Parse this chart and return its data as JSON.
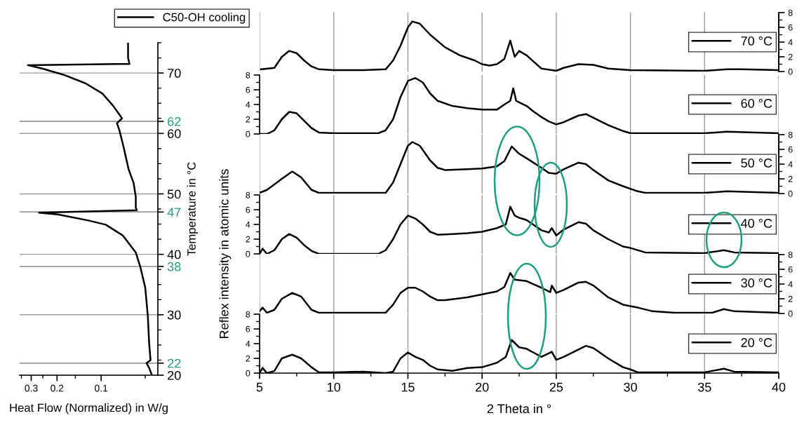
{
  "chart_data": [
    {
      "type": "line",
      "xlabel": "Heat Flow (Normalized) in W/g",
      "ylabel": "Temperature in °C",
      "log": "x",
      "xlim": [
        0.36,
        0.041
      ],
      "xticks": [
        {
          "value": 0.35,
          "label": null
        },
        0.3,
        {
          "value": 0.25,
          "label": null
        },
        0.2,
        {
          "value": 0.15,
          "label": null
        },
        0.1,
        {
          "value": 0.05,
          "label": null
        }
      ],
      "ylim": [
        20,
        75
      ],
      "yticks": [
        20,
        {
          "value": 22.5,
          "label": null
        },
        {
          "value": 25,
          "label": null
        },
        {
          "value": 27.5,
          "label": null
        },
        30,
        {
          "value": 32.5,
          "label": null
        },
        {
          "value": 35,
          "label": null
        },
        {
          "value": 37.5,
          "label": null
        },
        40,
        {
          "value": 42.5,
          "label": null
        },
        {
          "value": 45,
          "label": null
        },
        {
          "value": 47.5,
          "label": null
        },
        50,
        {
          "value": 52.5,
          "label": null
        },
        {
          "value": 55,
          "label": null
        },
        {
          "value": 57.5,
          "label": null
        },
        60,
        {
          "value": 62.5,
          "label": null
        },
        {
          "value": 65,
          "label": null
        },
        {
          "value": 67.5,
          "label": null
        },
        70,
        {
          "value": 72.5,
          "label": null
        },
        {
          "value": 75,
          "label": null
        }
      ],
      "grid": "y",
      "legend": "top",
      "ref_lines": [
        {
          "axis": "y",
          "value": 22,
          "label": "22"
        },
        {
          "axis": "y",
          "value": 38,
          "label": "38"
        },
        {
          "axis": "y",
          "value": 47,
          "label": "47"
        },
        {
          "axis": "y",
          "value": 62,
          "label": "62"
        }
      ],
      "series": [
        {
          "name": "C50-OH cooling",
          "color": "#000000",
          "x": [
            0.0655,
            0.0655,
            0.064,
            0.078,
            0.316,
            0.25,
            0.18,
            0.128,
            0.098,
            0.083,
            0.075,
            0.072,
            0.078,
            0.075,
            0.07,
            0.065,
            0.06,
            0.058,
            0.058,
            0.057,
            0.266,
            0.198,
            0.122,
            0.093,
            0.071,
            0.058,
            0.054,
            0.05,
            0.048,
            0.047,
            0.046,
            0.049,
            0.047,
            0.045
          ],
          "values": [
            74.9,
            72.5,
            71.5,
            71.5,
            71.3,
            70.7,
            69.7,
            68.3,
            66.6,
            64.6,
            63.1,
            62.5,
            61.7,
            60.5,
            57.6,
            54.1,
            51.8,
            49.5,
            47.7,
            47.3,
            46.9,
            46.6,
            45.6,
            44.9,
            43.1,
            40.3,
            37.9,
            34.5,
            29.8,
            25.2,
            22.5,
            22.0,
            21.2,
            20.0
          ]
        }
      ]
    },
    {
      "type": "line",
      "xlim": [
        5,
        40
      ],
      "xticks": [
        5,
        10,
        15,
        20,
        25,
        30,
        35,
        40
      ],
      "y2lim": [
        0,
        8
      ],
      "y2ticks": [
        0,
        {
          "value": 1,
          "label": null
        },
        2,
        {
          "value": 3,
          "label": null
        },
        4,
        {
          "value": 5,
          "label": null
        },
        6,
        {
          "value": 7,
          "label": null
        },
        8
      ],
      "grid": "x",
      "legend": "right",
      "tick_labels": "y",
      "x": [
        5.1,
        6,
        6.5,
        7,
        7.5,
        8,
        8.5,
        9,
        10,
        12,
        13.5,
        14,
        14.5,
        15,
        15.3,
        15.8,
        16.5,
        17.5,
        18.5,
        19.5,
        20,
        20.5,
        21,
        21.5,
        21.9,
        22.2,
        22.5,
        23,
        23.5,
        24,
        25,
        25.5,
        26.5,
        27.5,
        28.5,
        30,
        35,
        36.5,
        37.5,
        40
      ],
      "series": [
        {
          "name": "70 °C",
          "color": "#000000",
          "axis": "y2",
          "values": [
            0.3,
            0.5,
            2,
            2.8,
            2.5,
            1.5,
            0.7,
            0.3,
            0.2,
            0.2,
            0.3,
            1.5,
            3.5,
            6,
            6.8,
            6.5,
            5,
            3.3,
            2.2,
            1.5,
            1,
            0.8,
            1,
            1.7,
            4.2,
            2,
            2.8,
            2.2,
            1.3,
            0.4,
            0.1,
            0.5,
            1,
            0.9,
            0.4,
            0.2,
            0.1,
            0.3,
            0.3,
            0.2
          ]
        }
      ]
    },
    {
      "type": "line",
      "xlim": [
        5,
        40
      ],
      "xticks": [
        5,
        10,
        15,
        20,
        25,
        30,
        35,
        40
      ],
      "ylim": [
        0,
        8
      ],
      "yticks": [
        0,
        {
          "value": 1,
          "label": null
        },
        2,
        {
          "value": 3,
          "label": null
        },
        4,
        {
          "value": 5,
          "label": null
        },
        6,
        {
          "value": 7,
          "label": null
        },
        8
      ],
      "grid": "x",
      "legend": "right",
      "tick_labels": "y",
      "x": [
        5,
        5.5,
        6,
        6.5,
        7,
        7.5,
        8,
        8.5,
        9,
        10,
        13,
        13.5,
        14,
        14.5,
        15,
        15.5,
        16,
        16.5,
        17,
        18,
        19,
        20,
        21,
        21.5,
        21.9,
        22.1,
        22.3,
        22.5,
        23,
        23.5,
        24,
        24.5,
        25,
        25.5,
        26.5,
        27,
        27.5,
        28.5,
        29.5,
        30,
        35,
        36.5,
        40
      ],
      "series": [
        {
          "name": "60 °C",
          "color": "#000000",
          "values": [
            0,
            0,
            0.5,
            2,
            3,
            2.8,
            1.8,
            0.8,
            0.2,
            0.1,
            0.1,
            0.5,
            2,
            5,
            7.2,
            7.6,
            7,
            5.5,
            4.5,
            3.8,
            3.5,
            3.3,
            3.3,
            4,
            4.5,
            6.2,
            4.5,
            4.3,
            3.8,
            3,
            2.3,
            1.7,
            1.3,
            1.6,
            2.5,
            2.7,
            2.2,
            1.2,
            0.4,
            0.1,
            0.1,
            0.3,
            0.1
          ]
        }
      ]
    },
    {
      "type": "line",
      "xlim": [
        5,
        40
      ],
      "xticks": [
        5,
        10,
        15,
        20,
        25,
        30,
        35,
        40
      ],
      "y2lim": [
        0,
        8
      ],
      "y2ticks": [
        0,
        {
          "value": 1,
          "label": null
        },
        2,
        {
          "value": 3,
          "label": null
        },
        4,
        {
          "value": 5,
          "label": null
        },
        6,
        {
          "value": 7,
          "label": null
        },
        8
      ],
      "grid": "x",
      "legend": "right",
      "tick_labels": "y",
      "x": [
        5,
        5.5,
        6.5,
        7.2,
        7.8,
        8.5,
        9,
        13.5,
        14,
        14.5,
        15,
        15.3,
        15.8,
        16.5,
        17,
        17.5,
        19,
        20,
        21,
        21.5,
        22,
        22.5,
        23,
        24,
        24.5,
        25,
        25.5,
        26.5,
        27,
        27.5,
        28.5,
        29.5,
        30.5,
        31,
        35,
        36.5,
        40
      ],
      "series": [
        {
          "name": "50 °C",
          "color": "#000000",
          "axis": "y2",
          "values": [
            0.1,
            0.5,
            2,
            3,
            2.2,
            0.5,
            0.1,
            0.1,
            1.5,
            4,
            6.5,
            7,
            6.5,
            4.5,
            3.5,
            3.2,
            3.3,
            3.4,
            3.7,
            4.4,
            6.4,
            5.4,
            4.8,
            3.5,
            2.8,
            2.7,
            3.3,
            4.2,
            4,
            3.2,
            1.8,
            1,
            0.3,
            0.1,
            0.1,
            0.3,
            0.1
          ]
        }
      ]
    },
    {
      "type": "line",
      "ylabel": "Reflex intensity in atomic units",
      "xlim": [
        5,
        40
      ],
      "xticks": [
        5,
        10,
        15,
        20,
        25,
        30,
        35,
        40
      ],
      "ylim": [
        0,
        8
      ],
      "yticks": [
        0,
        {
          "value": 1,
          "label": null
        },
        2,
        {
          "value": 3,
          "label": null
        },
        4,
        {
          "value": 5,
          "label": null
        },
        6,
        {
          "value": 7,
          "label": null
        },
        8
      ],
      "grid": "x",
      "legend": "right",
      "tick_labels": "y",
      "x": [
        5,
        5.2,
        5.5,
        6,
        6.5,
        7,
        7.5,
        8,
        8.5,
        9,
        13,
        13.5,
        14,
        14.5,
        15,
        15.5,
        16,
        16.5,
        17,
        18,
        19,
        20,
        21,
        21.6,
        21.9,
        22.2,
        22.5,
        23,
        24,
        24.5,
        24.7,
        25,
        25.5,
        26.5,
        27,
        27.5,
        28.5,
        29.5,
        30,
        31,
        35,
        36.3,
        37,
        40
      ],
      "series": [
        {
          "name": "40 °C",
          "color": "#000000",
          "values": [
            0,
            0.7,
            0,
            0.5,
            2,
            2.7,
            2.2,
            1.2,
            0.4,
            0,
            0,
            0.5,
            2,
            4,
            5.2,
            4.8,
            4,
            3,
            2.6,
            2.7,
            2.8,
            3,
            3.5,
            4,
            6.4,
            5.2,
            4.9,
            4.6,
            3.2,
            2.9,
            3.5,
            2.5,
            3.3,
            4.3,
            4.1,
            3.2,
            2,
            1,
            0.8,
            0.2,
            0.1,
            0.5,
            0.2,
            0.1
          ]
        }
      ]
    },
    {
      "type": "line",
      "xlim": [
        5,
        40
      ],
      "xticks": [
        5,
        10,
        15,
        20,
        25,
        30,
        35,
        40
      ],
      "y2lim": [
        0,
        8
      ],
      "y2ticks": [
        0,
        {
          "value": 1,
          "label": null
        },
        2,
        {
          "value": 3,
          "label": null
        },
        4,
        {
          "value": 5,
          "label": null
        },
        6,
        {
          "value": 7,
          "label": null
        },
        8
      ],
      "grid": "x",
      "legend": "right",
      "tick_labels": "y",
      "x": [
        5,
        5.2,
        5.5,
        6,
        6.5,
        7.2,
        7.8,
        8.5,
        9,
        13.5,
        14,
        14.5,
        15,
        15.5,
        16,
        16.5,
        17,
        17.5,
        19,
        20,
        21,
        21.5,
        21.9,
        22.2,
        23,
        24,
        24.6,
        24.7,
        25,
        25.5,
        26.5,
        27,
        27.5,
        28.5,
        29.5,
        30.5,
        31.5,
        33,
        35.5,
        36.3,
        37,
        40
      ],
      "series": [
        {
          "name": "30 °C",
          "color": "#000000",
          "axis": "y2",
          "values": [
            0.3,
            0.8,
            0.1,
            0.5,
            2,
            2.8,
            2.3,
            0.5,
            0.1,
            0.1,
            1.2,
            2.8,
            3.5,
            3.5,
            3,
            2.3,
            1.8,
            1.8,
            2.2,
            2.6,
            3,
            3.6,
            5.5,
            4.6,
            4.4,
            3.5,
            2.9,
            3.8,
            2.8,
            3.2,
            4.2,
            4.3,
            3.8,
            2.2,
            1.2,
            0.8,
            0.3,
            0.1,
            0.1,
            0.6,
            0.3,
            0.1
          ]
        }
      ]
    },
    {
      "type": "line",
      "xlabel": "2 Theta in °",
      "xlim": [
        5,
        40
      ],
      "xticks": [
        5,
        {
          "value": 7.5,
          "label": null
        },
        10,
        {
          "value": 12.5,
          "label": null
        },
        15,
        {
          "value": 17.5,
          "label": null
        },
        20,
        {
          "value": 22.5,
          "label": null
        },
        25,
        {
          "value": 27.5,
          "label": null
        },
        30,
        {
          "value": 32.5,
          "label": null
        },
        35,
        {
          "value": 37.5,
          "label": null
        },
        40
      ],
      "ylim": [
        0,
        8
      ],
      "yticks": [
        0,
        {
          "value": 1,
          "label": null
        },
        2,
        {
          "value": 3,
          "label": null
        },
        4,
        {
          "value": 5,
          "label": null
        },
        6,
        {
          "value": 7,
          "label": null
        },
        8
      ],
      "grid": "x",
      "legend": "right",
      "x": [
        5,
        5.2,
        5.5,
        6,
        6.5,
        7.2,
        7.8,
        8.5,
        9,
        10,
        12,
        13.5,
        14,
        14.5,
        15,
        15.5,
        16,
        16.5,
        17,
        18,
        19,
        20,
        21,
        21.6,
        22,
        22.5,
        23,
        24,
        24.7,
        25,
        25.5,
        26.5,
        27,
        27.5,
        28.5,
        29.5,
        30,
        30.5,
        35,
        36.3,
        37,
        40
      ],
      "series": [
        {
          "name": "20 °C",
          "color": "#000000",
          "values": [
            0,
            0.7,
            0,
            0.3,
            2,
            2.5,
            2,
            0.8,
            0.1,
            0.1,
            0.2,
            0,
            0.2,
            2,
            2.8,
            2.2,
            1.8,
            1,
            0.5,
            0.3,
            0.7,
            0.8,
            1.4,
            2.2,
            4.5,
            3.5,
            3.3,
            2.2,
            2.9,
            1.8,
            2.2,
            3.2,
            3.7,
            3.4,
            2,
            0.8,
            0.5,
            0.1,
            0.1,
            0.6,
            0.2,
            0.1
          ]
        }
      ]
    }
  ]
}
